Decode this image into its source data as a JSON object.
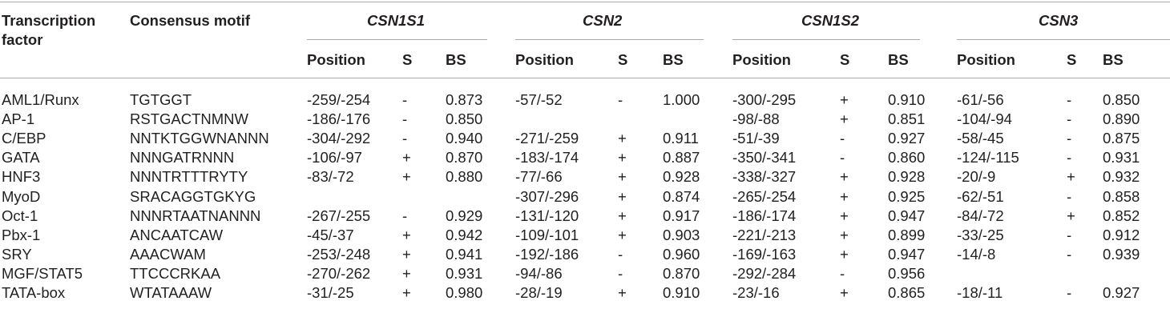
{
  "table": {
    "header": {
      "tf_label_line1": "Transcription",
      "tf_label_line2": "factor",
      "motif_label": "Consensus motif",
      "genes": [
        "CSN1S1",
        "CSN2",
        "CSN1S2",
        "CSN3"
      ],
      "sub_labels": {
        "position": "Position",
        "strand": "S",
        "score": "BS"
      }
    },
    "rows": [
      {
        "tf": "AML1/Runx",
        "motif": "TGTGGT",
        "cells": [
          [
            "-259/-254",
            "-",
            "0.873"
          ],
          [
            "-57/-52",
            "-",
            "1.000"
          ],
          [
            "-300/-295",
            "+",
            "0.910"
          ],
          [
            "-61/-56",
            "-",
            "0.850"
          ]
        ]
      },
      {
        "tf": "AP-1",
        "motif": "RSTGACTNMNW",
        "cells": [
          [
            "-186/-176",
            "-",
            "0.850"
          ],
          [
            "",
            "",
            ""
          ],
          [
            "-98/-88",
            "+",
            "0.851"
          ],
          [
            "-104/-94",
            "-",
            "0.890"
          ]
        ]
      },
      {
        "tf": "C/EBP",
        "motif": "NNTKTGGWNANNN",
        "cells": [
          [
            "-304/-292",
            "-",
            "0.940"
          ],
          [
            "-271/-259",
            "+",
            "0.911"
          ],
          [
            "-51/-39",
            "-",
            "0.927"
          ],
          [
            "-58/-45",
            "-",
            "0.875"
          ]
        ]
      },
      {
        "tf": "GATA",
        "motif": "NNNGATRNNN",
        "cells": [
          [
            "-106/-97",
            "+",
            "0.870"
          ],
          [
            "-183/-174",
            "+",
            "0.887"
          ],
          [
            "-350/-341",
            "-",
            "0.860"
          ],
          [
            "-124/-115",
            "-",
            "0.931"
          ]
        ]
      },
      {
        "tf": "HNF3",
        "motif": "NNNTRTTTRYTY",
        "cells": [
          [
            "-83/-72",
            "+",
            "0.880"
          ],
          [
            "-77/-66",
            "+",
            "0.928"
          ],
          [
            "-338/-327",
            "+",
            "0.928"
          ],
          [
            "-20/-9",
            "+",
            "0.932"
          ]
        ]
      },
      {
        "tf": "MyoD",
        "motif": "SRACAGGTGKYG",
        "cells": [
          [
            "",
            "",
            ""
          ],
          [
            "-307/-296",
            "+",
            "0.874"
          ],
          [
            "-265/-254",
            "+",
            "0.925"
          ],
          [
            "-62/-51",
            "-",
            "0.858"
          ]
        ]
      },
      {
        "tf": "Oct-1",
        "motif": "NNNRTAATNANNN",
        "cells": [
          [
            "-267/-255",
            "-",
            "0.929"
          ],
          [
            "-131/-120",
            "+",
            "0.917"
          ],
          [
            "-186/-174",
            "+",
            "0.947"
          ],
          [
            "-84/-72",
            "+",
            "0.852"
          ]
        ]
      },
      {
        "tf": "Pbx-1",
        "motif": "ANCAATCAW",
        "cells": [
          [
            "-45/-37",
            "+",
            "0.942"
          ],
          [
            "-109/-101",
            "+",
            "0.903"
          ],
          [
            "-221/-213",
            "+",
            "0.899"
          ],
          [
            "-33/-25",
            "-",
            "0.912"
          ]
        ]
      },
      {
        "tf": "SRY",
        "motif": "AAACWAM",
        "cells": [
          [
            "-253/-248",
            "+",
            "0.941"
          ],
          [
            "-192/-186",
            "-",
            "0.960"
          ],
          [
            "-169/-163",
            "+",
            "0.947"
          ],
          [
            "-14/-8",
            "-",
            "0.939"
          ]
        ]
      },
      {
        "tf": "MGF/STAT5",
        "motif": "TTCCCRKAA",
        "cells": [
          [
            "-270/-262",
            "+",
            "0.931"
          ],
          [
            "-94/-86",
            "-",
            "0.870"
          ],
          [
            "-292/-284",
            "-",
            "0.956"
          ],
          [
            "",
            "",
            ""
          ]
        ]
      },
      {
        "tf": "TATA-box",
        "motif": "WTATAAAW",
        "cells": [
          [
            "-31/-25",
            "+",
            "0.980"
          ],
          [
            "-28/-19",
            "+",
            "0.910"
          ],
          [
            "-23/-16",
            "+",
            "0.865"
          ],
          [
            "-18/-11",
            "-",
            "0.927"
          ]
        ]
      }
    ]
  }
}
